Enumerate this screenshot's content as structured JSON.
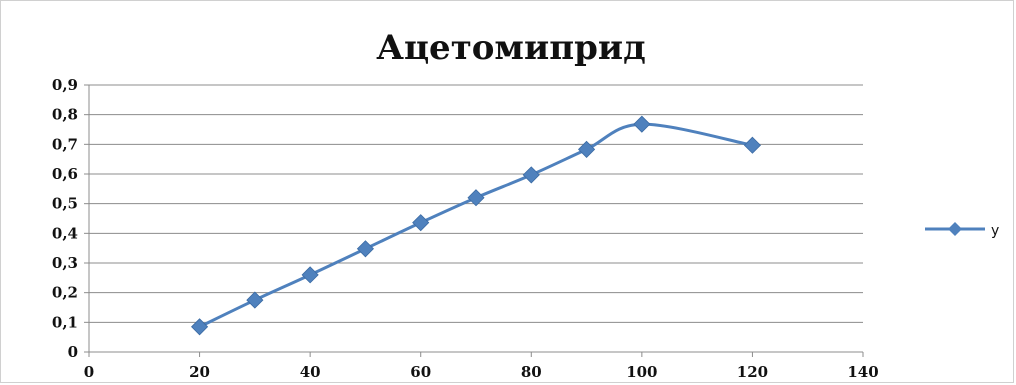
{
  "chart_data": {
    "type": "line",
    "title": "Ацетомиприд",
    "xlabel": "",
    "ylabel": "",
    "xlim": [
      0,
      140
    ],
    "ylim": [
      0,
      0.9
    ],
    "x_ticks": [
      "0",
      "20",
      "40",
      "60",
      "80",
      "100",
      "120",
      "140"
    ],
    "y_ticks": [
      "0",
      "0,1",
      "0,2",
      "0,3",
      "0,4",
      "0,5",
      "0,6",
      "0,7",
      "0,8",
      "0,9"
    ],
    "grid": "horizontal",
    "legend_position": "right",
    "smooth": true,
    "series": [
      {
        "name": "y",
        "color": "#4F81BD",
        "marker": "diamond",
        "x": [
          20,
          30,
          40,
          50,
          60,
          70,
          80,
          90,
          100,
          120
        ],
        "y": [
          0.085,
          0.175,
          0.26,
          0.348,
          0.436,
          0.52,
          0.597,
          0.683,
          0.768,
          0.697
        ]
      }
    ]
  }
}
